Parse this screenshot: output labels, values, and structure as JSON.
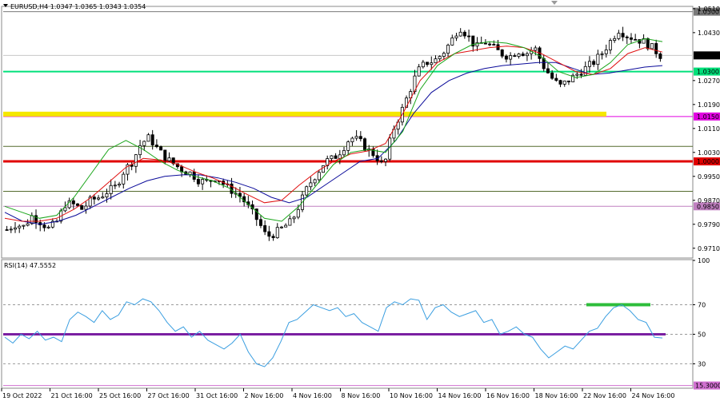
{
  "header": {
    "main_title": "EURUSD,H4  1.0347 1.0365 1.0343 1.0354",
    "rsi_title": "RSI(14) 47.5552"
  },
  "chart_data": [
    {
      "type": "candlestick",
      "symbol": "EURUSD",
      "timeframe": "H4",
      "ohlc_header": {
        "open": 1.0347,
        "high": 1.0365,
        "low": 1.0343,
        "close": 1.0354
      },
      "ylim": [
        0.968,
        1.0515
      ],
      "y_ticks": [
        "1.0510",
        "1.0430",
        "1.0354",
        "1.0270",
        "1.0190",
        "1.0110",
        "1.0030",
        "0.9950",
        "0.9870",
        "0.9790",
        "0.9710"
      ],
      "x_ticks": [
        "19 Oct 2022",
        "21 Oct 16:00",
        "25 Oct 16:00",
        "27 Oct 16:00",
        "31 Oct 16:00",
        "2 Nov 16:00",
        "4 Nov 16:00",
        "8 Nov 16:00",
        "10 Nov 16:00",
        "14 Nov 16:00",
        "16 Nov 16:00",
        "18 Nov 16:00",
        "22 Nov 16:00",
        "24 Nov 16:00"
      ],
      "close_path": [
        0.9772,
        0.979,
        0.9782,
        0.9818,
        0.9798,
        0.9775,
        0.98,
        0.986,
        0.9855,
        0.984,
        0.987,
        0.988,
        0.99,
        0.9915,
        0.997,
        1.0,
        1.006,
        1.008,
        1.004,
        1.001,
        0.999,
        0.997,
        0.996,
        0.9935,
        0.993,
        0.995,
        0.992,
        0.99,
        0.988,
        0.984,
        0.98,
        0.9748,
        0.976,
        0.978,
        0.98,
        0.986,
        0.992,
        0.996,
        1.0,
        1.001,
        1.004,
        1.008,
        1.007,
        1.004,
        1.002,
        0.998,
        1.01,
        1.016,
        1.023,
        1.03,
        1.033,
        1.0335,
        1.036,
        1.04,
        1.045,
        1.042,
        1.038,
        1.04,
        1.038,
        1.036,
        1.035,
        1.037,
        1.036,
        1.038,
        1.032,
        1.028,
        1.025,
        1.027,
        1.029,
        1.031,
        1.033,
        1.036,
        1.04,
        1.044,
        1.042,
        1.041,
        1.04,
        1.038,
        1.0354
      ],
      "moving_averages": [
        {
          "color": "#0b0b9a",
          "path": [
            0.983,
            0.98,
            0.979,
            0.98,
            0.982,
            0.985,
            0.988,
            0.991,
            0.9935,
            0.995,
            0.9955,
            0.9955,
            0.9945,
            0.993,
            0.991,
            0.988,
            0.9862,
            0.988,
            0.992,
            0.996,
            1.0,
            1.001,
            1.007,
            1.016,
            1.023,
            1.027,
            1.0295,
            1.031,
            1.032,
            1.0325,
            1.033,
            1.033,
            1.031,
            1.029,
            1.0295,
            1.0305,
            1.0315,
            1.032
          ]
        },
        {
          "color": "#e01010",
          "path": [
            0.981,
            0.98,
            0.98,
            0.981,
            0.984,
            0.988,
            0.993,
            0.998,
            1.001,
            1.0005,
            0.999,
            0.9965,
            0.9945,
            0.992,
            0.989,
            0.9862,
            0.987,
            0.992,
            0.9965,
            1.0,
            1.0025,
            1.0035,
            1.006,
            1.016,
            1.027,
            1.033,
            1.036,
            1.037,
            1.038,
            1.0385,
            1.038,
            1.036,
            1.033,
            1.03,
            1.029,
            1.031,
            1.036,
            1.038,
            1.0365
          ]
        },
        {
          "color": "#1aa51a",
          "path": [
            0.985,
            0.983,
            0.981,
            0.982,
            0.988,
            0.996,
            1.004,
            1.007,
            1.004,
            1.0,
            0.997,
            0.995,
            0.9935,
            0.991,
            0.986,
            0.981,
            0.98,
            0.985,
            0.992,
            0.999,
            1.003,
            1.004,
            1.003,
            1.01,
            1.024,
            1.032,
            1.036,
            1.039,
            1.04,
            1.0395,
            1.038,
            1.035,
            1.03,
            1.028,
            1.029,
            1.033,
            1.039,
            1.041,
            1.04
          ]
        }
      ],
      "horizontal_levels": [
        {
          "price": 1.05,
          "color": "#7a7a7a",
          "label": "1.0500",
          "label_bg": "#7a7a7a"
        },
        {
          "price": 1.03,
          "color": "#00e07a",
          "label": "1.0300",
          "label_bg": "#00e07a"
        },
        {
          "price": 1.015,
          "color": "#e000e0",
          "label": "1.0150",
          "label_bg": "#e000e0"
        },
        {
          "price": 1.005,
          "color": "#556b2f",
          "label": "",
          "label_bg": ""
        },
        {
          "price": 1.0,
          "color": "#e00000",
          "label": "1.0000",
          "label_bg": "#e00000"
        },
        {
          "price": 0.99,
          "color": "#556b2f",
          "label": "",
          "label_bg": ""
        },
        {
          "price": 0.985,
          "color": "#c080c0",
          "label": "0.9850",
          "label_bg": "#c080c0"
        }
      ],
      "current_price": {
        "price": 1.0354,
        "label": "1.0354"
      },
      "highlight_bar": {
        "price": 1.0158,
        "color": "#f5e800"
      }
    },
    {
      "type": "line",
      "indicator": "RSI(14)",
      "value": 47.5552,
      "ylim": [
        14,
        100
      ],
      "y_ticks": [
        "100",
        "70",
        "50",
        "30"
      ],
      "levels": [
        {
          "value": 70,
          "color": "#9a9a9a"
        },
        {
          "value": 50,
          "color": "#9a9a9a"
        },
        {
          "value": 30,
          "color": "#9a9a9a"
        },
        {
          "value": 15.3,
          "color": "#d070d0",
          "label": "15.3000"
        }
      ],
      "thick_line": {
        "value": 50,
        "color": "#7a1fa2"
      },
      "green_bar": {
        "value": 70,
        "color": "#2dbd3a"
      },
      "values": [
        48,
        44,
        50,
        47,
        52,
        46,
        48,
        45,
        60,
        65,
        62,
        58,
        66,
        60,
        63,
        72,
        70,
        74,
        72,
        66,
        58,
        52,
        55,
        48,
        52,
        46,
        43,
        40,
        44,
        50,
        38,
        30,
        28,
        34,
        45,
        58,
        60,
        65,
        70,
        68,
        66,
        68,
        62,
        64,
        58,
        55,
        52,
        68,
        72,
        70,
        74,
        73,
        60,
        68,
        70,
        65,
        62,
        64,
        66,
        58,
        60,
        50,
        52,
        55,
        50,
        48,
        40,
        34,
        38,
        42,
        40,
        46,
        52,
        54,
        62,
        68,
        70,
        66,
        60,
        58,
        48,
        47.5
      ]
    }
  ]
}
